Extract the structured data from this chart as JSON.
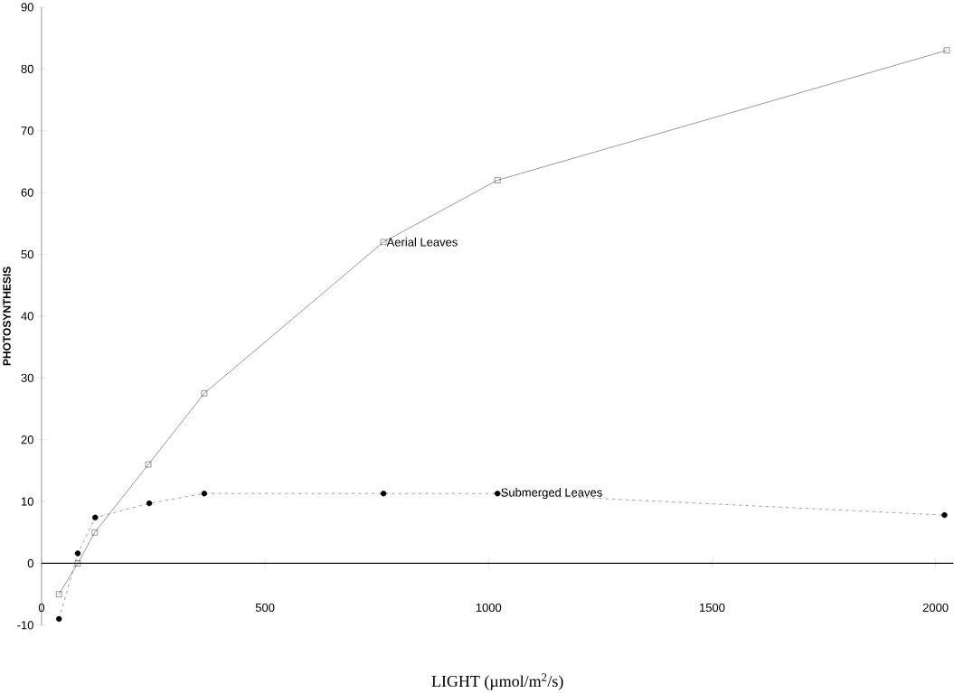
{
  "chart_data": {
    "type": "line",
    "xlabel": "LIGHT (µmol/m$^{2}$/s)",
    "ylabel": "PHOTOSYNTHESIS",
    "xlim": [
      0,
      2040
    ],
    "ylim": [
      -10,
      90
    ],
    "xticks": [
      0,
      500,
      1000,
      1500,
      2000
    ],
    "yticks": [
      -10,
      0,
      10,
      20,
      30,
      40,
      50,
      60,
      70,
      80,
      90
    ],
    "series": [
      {
        "color": "#000000",
        "marker": "square",
        "line_style": "solid",
        "x": [
          39,
          81,
          119,
          239,
          364,
          765,
          1020,
          2025
        ],
        "values": [
          -5,
          0,
          5,
          16,
          27.5,
          52,
          62,
          83
        ]
      },
      {
        "color": "#000000",
        "marker": "circle",
        "line_style": "dashdot",
        "x": [
          39,
          81,
          120,
          241,
          364,
          765,
          1020,
          2020
        ],
        "values": [
          -9,
          1.6,
          7.4,
          9.7,
          11.3,
          11.3,
          11.3,
          7.8
        ]
      }
    ],
    "annotations": [
      {
        "text": "Aerial Leaves",
        "x": 765,
        "y": 52
      },
      {
        "text": "Submerged Leaves",
        "x": 1020,
        "y": 11.3
      }
    ]
  }
}
